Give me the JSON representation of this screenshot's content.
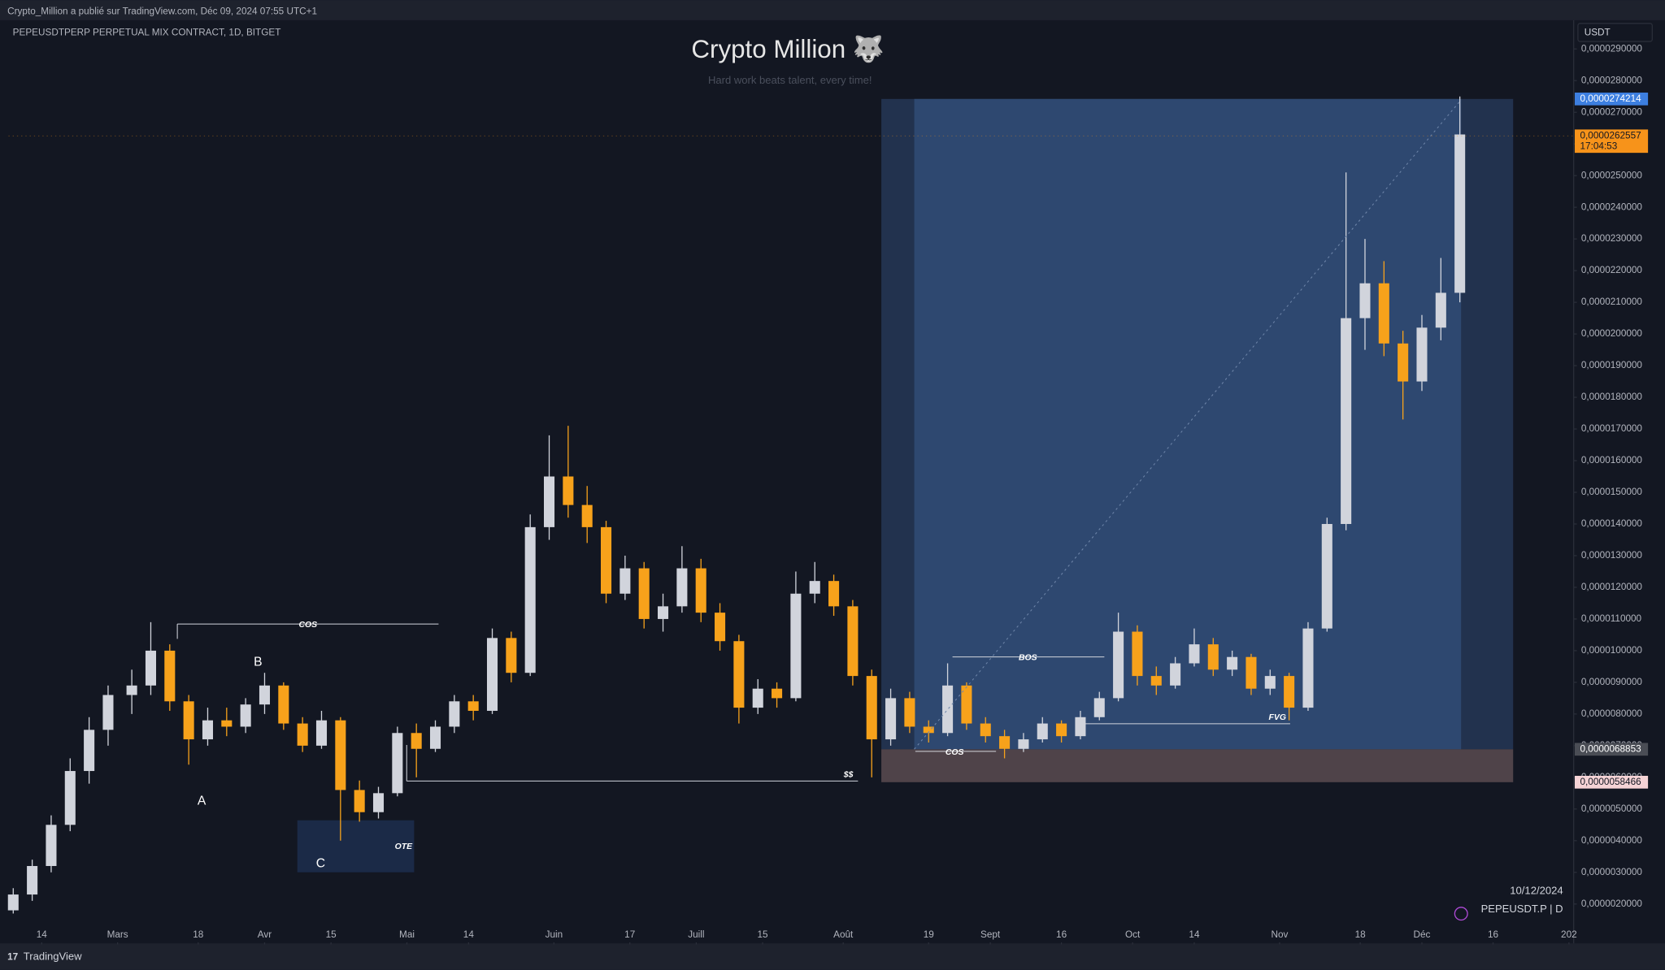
{
  "header": {
    "publisher": "Crypto_Million a publié sur TradingView.com, Déc 09, 2024 07:55 UTC+1",
    "symbol": "PEPEUSDTPERP PERPETUAL MIX CONTRACT, 1D, BITGET",
    "currency": "USDT"
  },
  "chart_data": {
    "type": "candlestick",
    "title": "Crypto Million 🐺",
    "subtitle": "Hard work beats talent, every time!",
    "up_color": "#d1d4dc",
    "down_color": "#f7a21b",
    "x": [
      "2024-02-08",
      "2024-02-12",
      "2024-02-16",
      "2024-02-20",
      "2024-02-24",
      "2024-02-28",
      "2024-03-04",
      "2024-03-08",
      "2024-03-12",
      "2024-03-16",
      "2024-03-20",
      "2024-03-24",
      "2024-03-28",
      "2024-04-01",
      "2024-04-05",
      "2024-04-09",
      "2024-04-13",
      "2024-04-17",
      "2024-04-21",
      "2024-04-25",
      "2024-04-29",
      "2024-05-03",
      "2024-05-07",
      "2024-05-11",
      "2024-05-15",
      "2024-05-19",
      "2024-05-23",
      "2024-05-27",
      "2024-05-31",
      "2024-06-04",
      "2024-06-08",
      "2024-06-12",
      "2024-06-16",
      "2024-06-20",
      "2024-06-24",
      "2024-06-28",
      "2024-07-02",
      "2024-07-06",
      "2024-07-10",
      "2024-07-14",
      "2024-07-18",
      "2024-07-22",
      "2024-07-26",
      "2024-07-30",
      "2024-08-03",
      "2024-08-07",
      "2024-08-11",
      "2024-08-15",
      "2024-08-19",
      "2024-08-23",
      "2024-08-27",
      "2024-08-31",
      "2024-09-04",
      "2024-09-08",
      "2024-09-12",
      "2024-09-16",
      "2024-09-20",
      "2024-09-24",
      "2024-09-28",
      "2024-10-02",
      "2024-10-06",
      "2024-10-10",
      "2024-10-14",
      "2024-10-18",
      "2024-10-22",
      "2024-10-26",
      "2024-10-30",
      "2024-11-03",
      "2024-11-07",
      "2024-11-11",
      "2024-11-15",
      "2024-11-19",
      "2024-11-23",
      "2024-11-27",
      "2024-12-01",
      "2024-12-05",
      "2024-12-09"
    ],
    "open": [
      1.8e-06,
      2.3e-06,
      3.2e-06,
      4.5e-06,
      6.2e-06,
      7.5e-06,
      8.6e-06,
      8.9e-06,
      1e-05,
      8.4e-06,
      7.2e-06,
      7.8e-06,
      7.6e-06,
      8.3e-06,
      8.9e-06,
      7.7e-06,
      7e-06,
      7.8e-06,
      5.6e-06,
      4.9e-06,
      5.5e-06,
      7.4e-06,
      6.9e-06,
      7.6e-06,
      8.4e-06,
      8.1e-06,
      1.04e-05,
      9.3e-06,
      1.39e-05,
      1.55e-05,
      1.46e-05,
      1.39e-05,
      1.18e-05,
      1.26e-05,
      1.1e-05,
      1.14e-05,
      1.26e-05,
      1.12e-05,
      1.03e-05,
      8.2e-06,
      8.8e-06,
      8.5e-06,
      1.18e-05,
      1.22e-05,
      1.14e-05,
      9.2e-06,
      7.2e-06,
      8.5e-06,
      7.6e-06,
      7.4e-06,
      8.9e-06,
      7.7e-06,
      7.3e-06,
      6.9e-06,
      7.2e-06,
      7.7e-06,
      7.3e-06,
      7.9e-06,
      8.5e-06,
      1.06e-05,
      9.2e-06,
      8.9e-06,
      9.6e-06,
      1.02e-05,
      9.4e-06,
      9.8e-06,
      8.8e-06,
      9.2e-06,
      8.2e-06,
      1.07e-05,
      1.4e-05,
      2.05e-05,
      2.16e-05,
      1.97e-05,
      1.85e-05,
      2.02e-05,
      2.13e-05
    ],
    "high": [
      2.5e-06,
      3.4e-06,
      4.8e-06,
      6.6e-06,
      7.9e-06,
      8.9e-06,
      9.4e-06,
      1.09e-05,
      1.02e-05,
      8.6e-06,
      8.2e-06,
      8.2e-06,
      8.5e-06,
      9.3e-06,
      9e-06,
      7.9e-06,
      8.1e-06,
      7.9e-06,
      5.9e-06,
      5.7e-06,
      7.6e-06,
      7.7e-06,
      7.8e-06,
      8.6e-06,
      8.6e-06,
      1.07e-05,
      1.06e-05,
      1.43e-05,
      1.68e-05,
      1.71e-05,
      1.52e-05,
      1.41e-05,
      1.3e-05,
      1.28e-05,
      1.18e-05,
      1.33e-05,
      1.29e-05,
      1.15e-05,
      1.05e-05,
      9.1e-06,
      9e-06,
      1.25e-05,
      1.28e-05,
      1.24e-05,
      1.16e-05,
      9.4e-06,
      8.8e-06,
      8.7e-06,
      7.8e-06,
      9.6e-06,
      9e-06,
      7.9e-06,
      7.5e-06,
      7.4e-06,
      7.9e-06,
      7.8e-06,
      8.1e-06,
      8.7e-06,
      1.12e-05,
      1.08e-05,
      9.5e-06,
      9.8e-06,
      1.07e-05,
      1.04e-05,
      1e-05,
      9.9e-06,
      9.4e-06,
      9.3e-06,
      1.09e-05,
      1.42e-05,
      2.51e-05,
      2.3e-05,
      2.23e-05,
      2.01e-05,
      2.06e-05,
      2.24e-05,
      2.75e-05
    ],
    "low": [
      1.7e-06,
      2.1e-06,
      3e-06,
      4.3e-06,
      5.8e-06,
      7e-06,
      8e-06,
      8.6e-06,
      8.1e-06,
      6.4e-06,
      7e-06,
      7.3e-06,
      7.4e-06,
      8e-06,
      7.5e-06,
      6.8e-06,
      6.9e-06,
      4e-06,
      4.6e-06,
      4.7e-06,
      5.4e-06,
      6e-06,
      6.8e-06,
      7.4e-06,
      7.8e-06,
      8e-06,
      9e-06,
      9.2e-06,
      1.35e-05,
      1.42e-05,
      1.34e-05,
      1.15e-05,
      1.16e-05,
      1.07e-05,
      1.06e-05,
      1.12e-05,
      1.09e-05,
      1e-05,
      7.7e-06,
      8e-06,
      8.2e-06,
      8.4e-06,
      1.15e-05,
      1.11e-05,
      8.9e-06,
      6e-06,
      7e-06,
      7.4e-06,
      7.1e-06,
      7.3e-06,
      7.5e-06,
      7.1e-06,
      6.6e-06,
      6.8e-06,
      7.1e-06,
      7.1e-06,
      7.2e-06,
      7.8e-06,
      8.4e-06,
      8.9e-06,
      8.6e-06,
      8.8e-06,
      9.5e-06,
      9.2e-06,
      9.2e-06,
      8.6e-06,
      8.6e-06,
      7.8e-06,
      8.1e-06,
      1.06e-05,
      1.38e-05,
      1.95e-05,
      1.93e-05,
      1.73e-05,
      1.82e-05,
      1.98e-05,
      2.1e-05
    ],
    "close": [
      2.3e-06,
      3.2e-06,
      4.5e-06,
      6.2e-06,
      7.5e-06,
      8.6e-06,
      8.9e-06,
      1e-05,
      8.4e-06,
      7.2e-06,
      7.8e-06,
      7.6e-06,
      8.3e-06,
      8.9e-06,
      7.7e-06,
      7e-06,
      7.8e-06,
      5.6e-06,
      4.9e-06,
      5.5e-06,
      7.4e-06,
      6.9e-06,
      7.6e-06,
      8.4e-06,
      8.1e-06,
      1.04e-05,
      9.3e-06,
      1.39e-05,
      1.55e-05,
      1.46e-05,
      1.39e-05,
      1.18e-05,
      1.26e-05,
      1.1e-05,
      1.14e-05,
      1.26e-05,
      1.12e-05,
      1.03e-05,
      8.2e-06,
      8.8e-06,
      8.5e-06,
      1.18e-05,
      1.22e-05,
      1.14e-05,
      9.2e-06,
      7.2e-06,
      8.5e-06,
      7.6e-06,
      7.4e-06,
      8.9e-06,
      7.7e-06,
      7.3e-06,
      6.9e-06,
      7.2e-06,
      7.7e-06,
      7.3e-06,
      7.9e-06,
      8.5e-06,
      1.06e-05,
      9.2e-06,
      8.9e-06,
      9.6e-06,
      1.02e-05,
      9.4e-06,
      9.8e-06,
      8.8e-06,
      9.2e-06,
      8.2e-06,
      1.07e-05,
      1.4e-05,
      2.05e-05,
      2.16e-05,
      1.97e-05,
      1.85e-05,
      2.02e-05,
      2.13e-05,
      2.63e-05
    ],
    "xlim": [
      "2024-02-07",
      "2025-01-02"
    ],
    "xticks": [
      {
        "value": "2024-02-14",
        "label": "14"
      },
      {
        "value": "2024-03-01",
        "label": "Mars"
      },
      {
        "value": "2024-03-18",
        "label": "18"
      },
      {
        "value": "2024-04-01",
        "label": "Avr"
      },
      {
        "value": "2024-04-15",
        "label": "15"
      },
      {
        "value": "2024-05-01",
        "label": "Mai"
      },
      {
        "value": "2024-05-14",
        "label": "14"
      },
      {
        "value": "2024-06-01",
        "label": "Juin"
      },
      {
        "value": "2024-06-17",
        "label": "17"
      },
      {
        "value": "2024-07-01",
        "label": "Juill"
      },
      {
        "value": "2024-07-15",
        "label": "15"
      },
      {
        "value": "2024-08-01",
        "label": "Août"
      },
      {
        "value": "2024-08-19",
        "label": "19"
      },
      {
        "value": "2024-09-01",
        "label": "Sept"
      },
      {
        "value": "2024-09-16",
        "label": "16"
      },
      {
        "value": "2024-10-01",
        "label": "Oct"
      },
      {
        "value": "2024-10-14",
        "label": "14"
      },
      {
        "value": "2024-11-01",
        "label": "Nov"
      },
      {
        "value": "2024-11-18",
        "label": "18"
      },
      {
        "value": "2024-12-01",
        "label": "Déc"
      },
      {
        "value": "2024-12-16",
        "label": "16"
      },
      {
        "value": "2025-01-01",
        "label": "202"
      }
    ],
    "ylim": [
      7.9e-07,
      2.994e-05
    ],
    "yticks": [
      {
        "value": 2.9e-05,
        "label": "0,0000290000"
      },
      {
        "value": 2.8e-05,
        "label": "0,0000280000"
      },
      {
        "value": 2.7e-05,
        "label": "0,0000270000"
      },
      {
        "value": 2.6e-05,
        "label": "0,0000260000"
      },
      {
        "value": 2.5e-05,
        "label": "0,0000250000"
      },
      {
        "value": 2.4e-05,
        "label": "0,0000240000"
      },
      {
        "value": 2.3e-05,
        "label": "0,0000230000"
      },
      {
        "value": 2.2e-05,
        "label": "0,0000220000"
      },
      {
        "value": 2.1e-05,
        "label": "0,0000210000"
      },
      {
        "value": 2e-05,
        "label": "0,0000200000"
      },
      {
        "value": 1.9e-05,
        "label": "0,0000190000"
      },
      {
        "value": 1.8e-05,
        "label": "0,0000180000"
      },
      {
        "value": 1.7e-05,
        "label": "0,0000170000"
      },
      {
        "value": 1.6e-05,
        "label": "0,0000160000"
      },
      {
        "value": 1.5e-05,
        "label": "0,0000150000"
      },
      {
        "value": 1.4e-05,
        "label": "0,0000140000"
      },
      {
        "value": 1.3e-05,
        "label": "0,0000130000"
      },
      {
        "value": 1.2e-05,
        "label": "0,0000120000"
      },
      {
        "value": 1.1e-05,
        "label": "0,0000110000"
      },
      {
        "value": 1e-05,
        "label": "0,0000100000"
      },
      {
        "value": 9e-06,
        "label": "0,0000090000"
      },
      {
        "value": 8e-06,
        "label": "0,0000080000"
      },
      {
        "value": 7e-06,
        "label": "0,0000070000"
      },
      {
        "value": 6e-06,
        "label": "0,0000060000"
      },
      {
        "value": 5e-06,
        "label": "0,0000050000"
      },
      {
        "value": 4e-06,
        "label": "0,0000040000"
      },
      {
        "value": 3e-06,
        "label": "0,0000030000"
      },
      {
        "value": 2e-06,
        "label": "0,0000020000"
      }
    ],
    "position": {
      "target": {
        "value": 2.74214e-05,
        "label": "0,0000274214"
      },
      "entry": {
        "value": 6.8853e-06,
        "label": "0,0000068853"
      },
      "stop": {
        "value": 5.8466e-06,
        "label": "0,0000058466"
      }
    },
    "last_price": {
      "value": 2.62557e-05,
      "label": "0,0000262557",
      "countdown": "17:04:53"
    },
    "annotations": {
      "cos_1": "COS",
      "a": "A",
      "b": "B",
      "c": "C",
      "ote": "OTE",
      "ss": "$$",
      "bos": "BOS",
      "cos_2": "COS",
      "fvg": "FVG"
    },
    "date": "10/12/2024",
    "ticker": "PEPEUSDT.P | D"
  },
  "footer": {
    "brand": "TradingView"
  }
}
